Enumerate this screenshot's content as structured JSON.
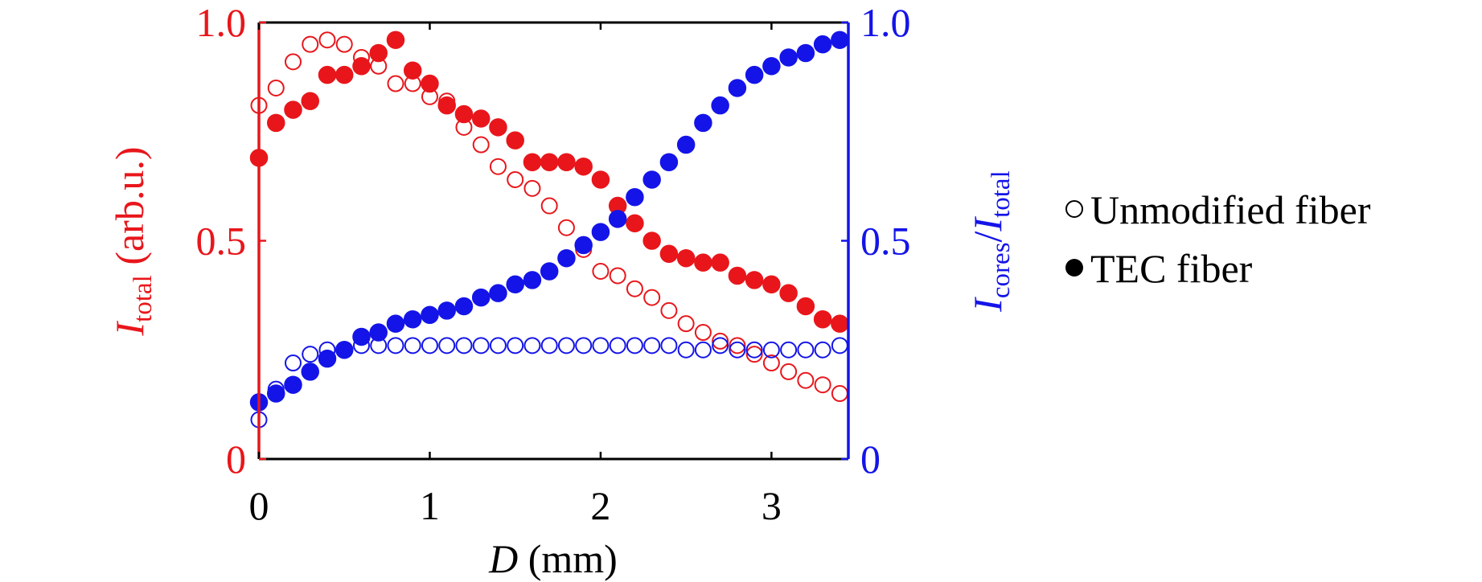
{
  "chart_data": {
    "type": "scatter",
    "title": "",
    "xlabel": {
      "main": "D",
      "unit": "(mm)"
    },
    "ylabel_left": {
      "main": "I",
      "sub": "total",
      "unit": "(arb.u.)"
    },
    "ylabel_right": {
      "main1": "I",
      "sub1": "cores",
      "slash": "/",
      "main2": "I",
      "sub2": "total"
    },
    "xlim": [
      0,
      3.45
    ],
    "ylim_left": [
      0,
      1.0
    ],
    "ylim_right": [
      0,
      1.0
    ],
    "x_ticks": [
      0,
      1,
      2,
      3
    ],
    "x_tick_labels": [
      "0",
      "1",
      "2",
      "3"
    ],
    "y_left_ticks": [
      0,
      0.5,
      1.0
    ],
    "y_left_tick_labels": [
      "0",
      "0.5",
      "1.0"
    ],
    "y_right_ticks": [
      0,
      0.5,
      1.0
    ],
    "y_right_tick_labels": [
      "0",
      "0.5",
      "1.0"
    ],
    "grid": false,
    "legend": {
      "placement": "right",
      "entries": [
        {
          "label": "Unmodified fiber",
          "marker": "open-circle"
        },
        {
          "label": "TEC fiber",
          "marker": "filled-circle"
        }
      ]
    },
    "colors": {
      "left_axis": "#e8161b",
      "right_axis": "#1414e8",
      "legend": "#000000"
    },
    "x": [
      0,
      0.1,
      0.2,
      0.3,
      0.4,
      0.5,
      0.6,
      0.7,
      0.8,
      0.9,
      1.0,
      1.1,
      1.2,
      1.3,
      1.4,
      1.5,
      1.6,
      1.7,
      1.8,
      1.9,
      2.0,
      2.1,
      2.2,
      2.3,
      2.4,
      2.5,
      2.6,
      2.7,
      2.8,
      2.9,
      3.0,
      3.1,
      3.2,
      3.3,
      3.4
    ],
    "series": [
      {
        "axis": "left",
        "color": "#e8161b",
        "filled": false,
        "values": [
          0.81,
          0.85,
          0.91,
          0.95,
          0.96,
          0.95,
          0.92,
          0.9,
          0.86,
          0.86,
          0.83,
          0.82,
          0.76,
          0.72,
          0.67,
          0.64,
          0.62,
          0.58,
          0.53,
          0.48,
          0.43,
          0.42,
          0.39,
          0.37,
          0.34,
          0.31,
          0.29,
          0.27,
          0.26,
          0.24,
          0.22,
          0.2,
          0.18,
          0.17,
          0.15
        ]
      },
      {
        "axis": "left",
        "color": "#e8161b",
        "filled": true,
        "values": [
          0.69,
          0.77,
          0.8,
          0.82,
          0.88,
          0.88,
          0.9,
          0.93,
          0.96,
          0.89,
          0.86,
          0.81,
          0.79,
          0.78,
          0.76,
          0.73,
          0.68,
          0.68,
          0.68,
          0.67,
          0.64,
          0.58,
          0.54,
          0.5,
          0.47,
          0.46,
          0.45,
          0.45,
          0.42,
          0.41,
          0.4,
          0.38,
          0.35,
          0.32,
          0.31
        ]
      },
      {
        "axis": "right",
        "color": "#1414e8",
        "filled": false,
        "values": [
          0.09,
          0.16,
          0.22,
          0.24,
          0.25,
          0.25,
          0.26,
          0.26,
          0.26,
          0.26,
          0.26,
          0.26,
          0.26,
          0.26,
          0.26,
          0.26,
          0.26,
          0.26,
          0.26,
          0.26,
          0.26,
          0.26,
          0.26,
          0.26,
          0.26,
          0.25,
          0.25,
          0.26,
          0.25,
          0.25,
          0.25,
          0.25,
          0.25,
          0.25,
          0.26
        ]
      },
      {
        "axis": "right",
        "color": "#1414e8",
        "filled": true,
        "values": [
          0.13,
          0.15,
          0.17,
          0.2,
          0.23,
          0.25,
          0.28,
          0.29,
          0.31,
          0.32,
          0.33,
          0.34,
          0.35,
          0.37,
          0.38,
          0.4,
          0.41,
          0.43,
          0.46,
          0.49,
          0.52,
          0.55,
          0.6,
          0.64,
          0.68,
          0.72,
          0.77,
          0.81,
          0.85,
          0.88,
          0.9,
          0.92,
          0.93,
          0.95,
          0.96
        ]
      }
    ]
  }
}
